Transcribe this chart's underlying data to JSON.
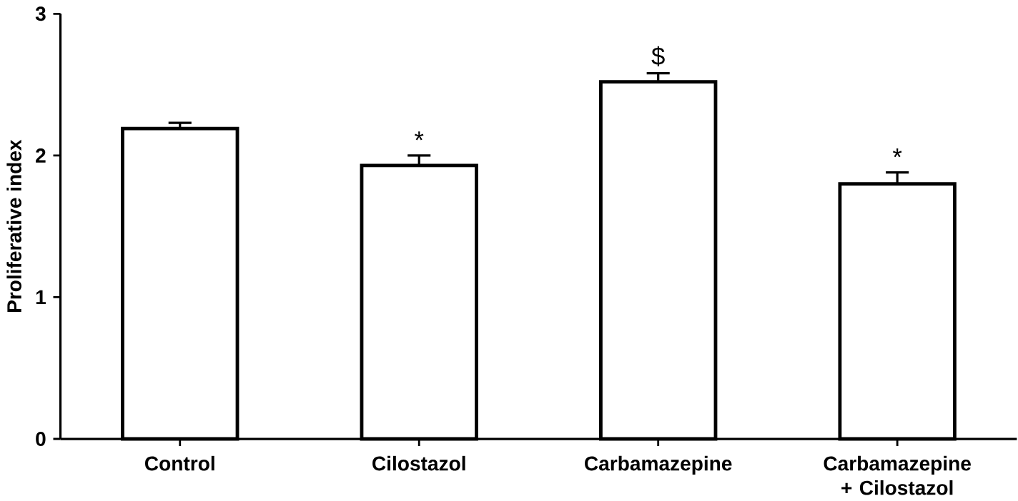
{
  "chart_data": {
    "type": "bar",
    "ylabel": "Proliferative index",
    "categories": [
      "Control",
      "Cilostazol",
      "Carbamazepine",
      "Carbamazepine + Cilostazol"
    ],
    "values": [
      2.19,
      1.93,
      2.52,
      1.8
    ],
    "errors": [
      [
        2.19,
        2.23
      ],
      [
        1.93,
        2.0
      ],
      [
        2.52,
        2.58
      ],
      [
        1.8,
        1.88
      ]
    ],
    "colors": [
      "#000000",
      "#000000",
      "#000000",
      "#000000"
    ],
    "ylim": [
      0,
      3
    ],
    "yticks": [
      0,
      1,
      2,
      3
    ],
    "annotations": [
      {
        "text": "*",
        "x": "Cilostazol",
        "y": 2.0
      },
      {
        "text": "$",
        "x": "Carbamazepine",
        "y": 2.58
      },
      {
        "text": "*",
        "x": "Carbamazepine + Cilostazol",
        "y": 1.88
      }
    ]
  }
}
